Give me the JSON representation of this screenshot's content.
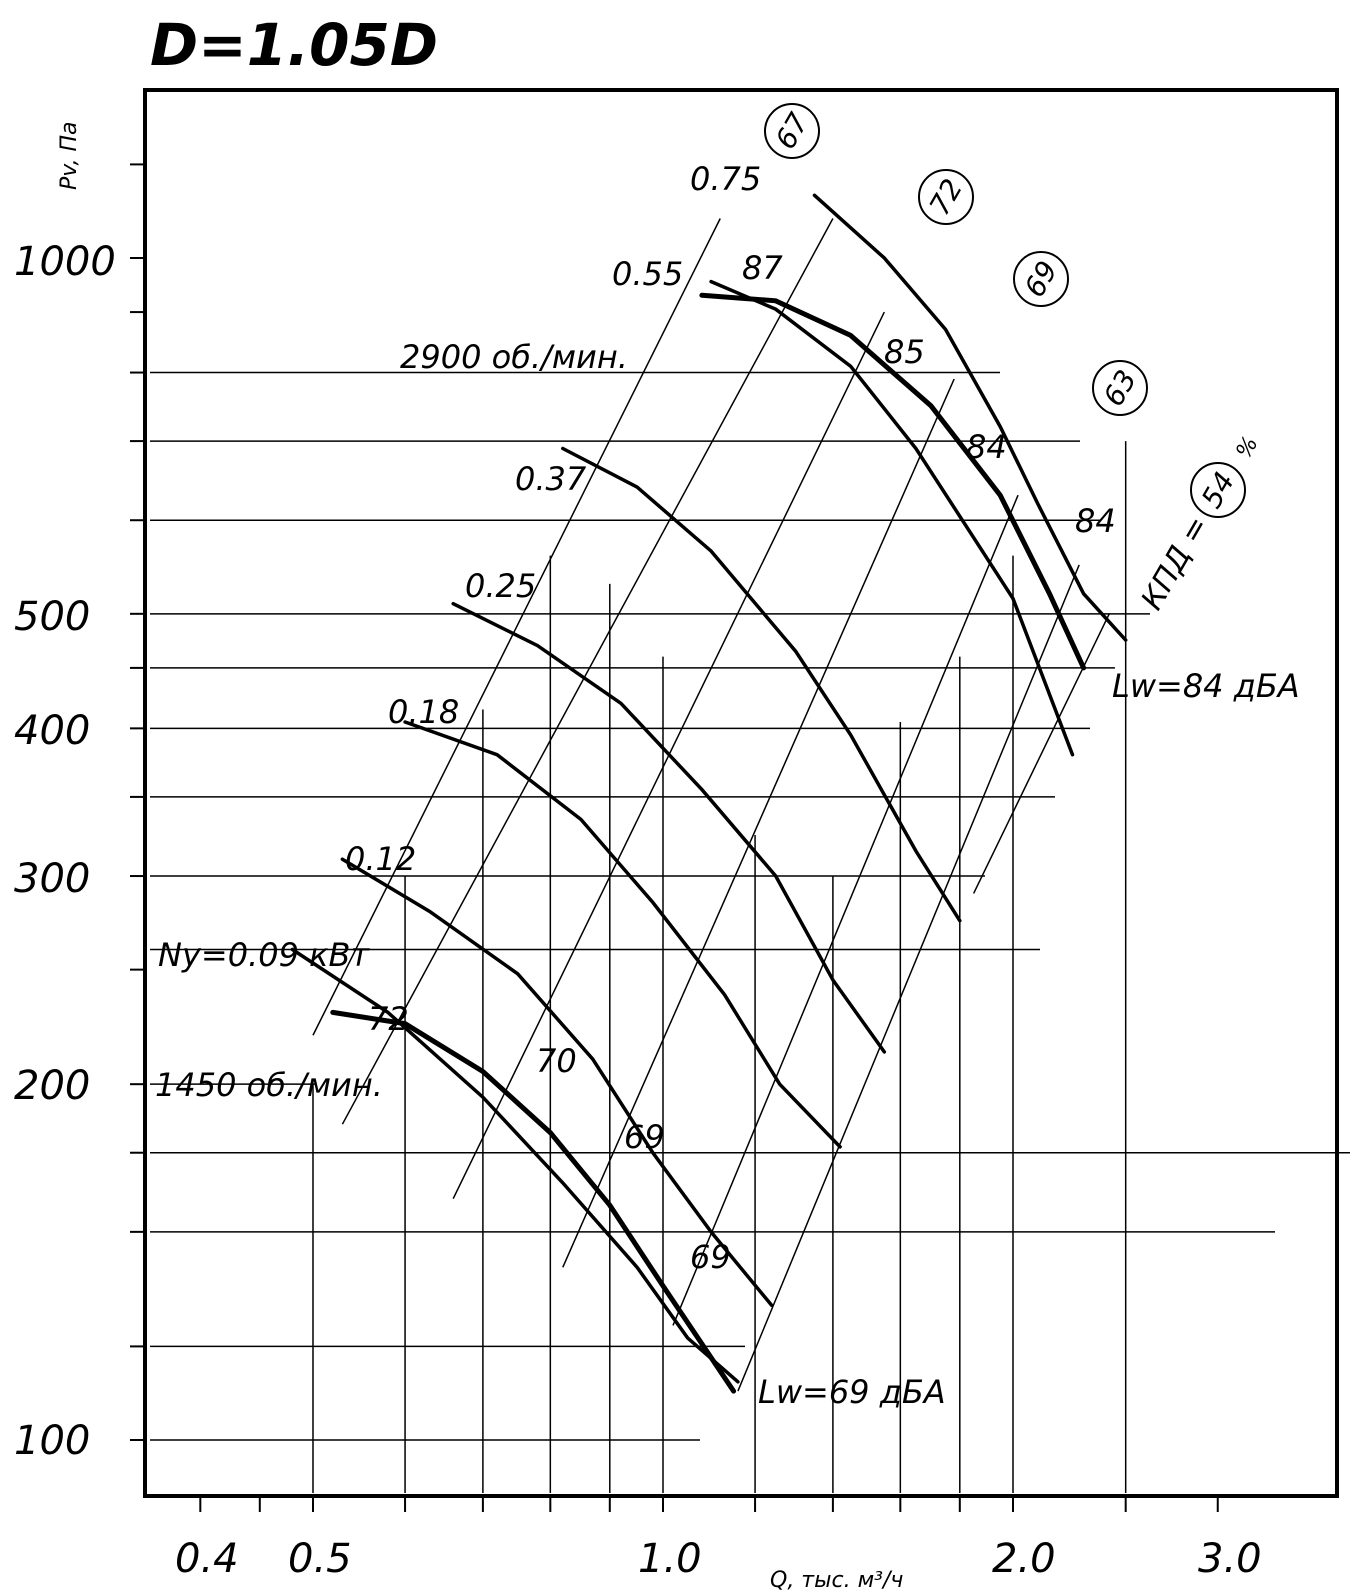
{
  "chart_data": {
    "type": "line",
    "title": "D=1.05D",
    "ylabel": "Pv, Па",
    "xlabel": "Q, тыс. м³/ч",
    "x_scale": "log",
    "y_scale": "log",
    "xlim": [
      0.35,
      3.5
    ],
    "ylim": [
      85,
      1500
    ],
    "grid": true,
    "x_tick_labels": [
      "0.4",
      "0.5",
      "1.0",
      "2.0",
      "3.0"
    ],
    "y_tick_labels": [
      "100",
      "200",
      "300",
      "400",
      "500",
      "1000"
    ],
    "speed_labels": [
      "2900 об./мин.",
      "1450 об./мин."
    ],
    "sound_labels": [
      "Lw=84 дБА",
      "Lw=69 дБА"
    ],
    "efficiency_label": "КПД =",
    "efficiency_unit": "%",
    "efficiency_values": [
      "67",
      "72",
      "69",
      "63",
      "54"
    ],
    "level_labels": {
      "top": [
        "87",
        "85",
        "84",
        "84"
      ],
      "bottom": [
        "72",
        "70",
        "69",
        "69"
      ]
    },
    "series": [
      {
        "name": "0.75",
        "x": [
          1.35,
          1.55,
          1.75,
          1.95,
          2.1,
          2.3,
          2.5
        ],
        "y": [
          1130,
          1000,
          870,
          720,
          620,
          520,
          475
        ]
      },
      {
        "name": "0.55",
        "x": [
          1.1,
          1.25,
          1.45,
          1.65,
          1.85,
          2.0,
          2.25
        ],
        "y": [
          955,
          905,
          810,
          690,
          580,
          515,
          380
        ]
      },
      {
        "name": "0.37",
        "x": [
          0.82,
          0.95,
          1.1,
          1.3,
          1.45,
          1.65,
          1.8
        ],
        "y": [
          690,
          640,
          565,
          465,
          395,
          315,
          275
        ]
      },
      {
        "name": "0.25",
        "x": [
          0.66,
          0.78,
          0.92,
          1.08,
          1.25,
          1.4,
          1.55
        ],
        "y": [
          510,
          470,
          420,
          355,
          300,
          245,
          213
        ]
      },
      {
        "name": "0.18",
        "x": [
          0.6,
          0.72,
          0.85,
          0.98,
          1.13,
          1.26,
          1.42
        ],
        "y": [
          405,
          380,
          335,
          285,
          238,
          200,
          177
        ]
      },
      {
        "name": "0.12",
        "x": [
          0.53,
          0.63,
          0.75,
          0.87,
          0.98,
          1.1,
          1.24
        ],
        "y": [
          310,
          280,
          248,
          210,
          175,
          150,
          130
        ]
      },
      {
        "name": "Ny=0.09 кВт",
        "x": [
          0.48,
          0.58,
          0.7,
          0.82,
          0.95,
          1.05,
          1.16
        ],
        "y": [
          260,
          230,
          195,
          165,
          140,
          122,
          112
        ]
      }
    ],
    "speed_curves": [
      {
        "name": "2900 об./мин.",
        "x": [
          1.08,
          1.25,
          1.45,
          1.7,
          1.95,
          2.15,
          2.3
        ],
        "y": [
          930,
          920,
          860,
          750,
          630,
          520,
          450
        ]
      },
      {
        "name": "1450 об./мин.",
        "x": [
          0.52,
          0.6,
          0.7,
          0.8,
          0.9,
          1.0,
          1.15
        ],
        "y": [
          230,
          225,
          205,
          182,
          158,
          135,
          110
        ]
      }
    ]
  }
}
